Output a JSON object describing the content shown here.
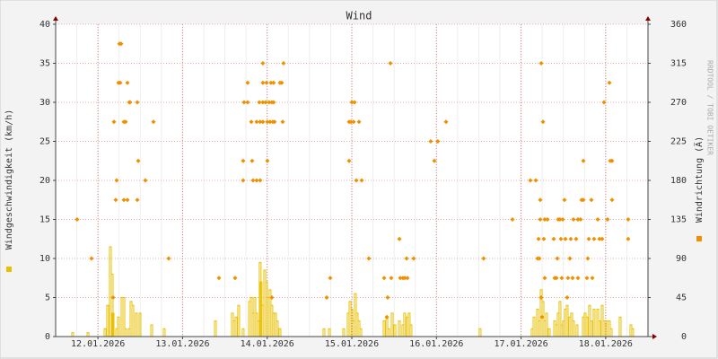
{
  "chart_data": {
    "type": "combo",
    "title": "Wind",
    "watermark": "RRDTOOL / TOBI OETIKER",
    "xlim": [
      0.5,
      7.5
    ],
    "xticks": [
      {
        "value": 1,
        "label": "12.01.2026"
      },
      {
        "value": 2,
        "label": "13.01.2026"
      },
      {
        "value": 3,
        "label": "14.01.2026"
      },
      {
        "value": 4,
        "label": "15.01.2026"
      },
      {
        "value": 5,
        "label": "16.01.2026"
      },
      {
        "value": 6,
        "label": "17.01.2026"
      },
      {
        "value": 7,
        "label": "18.01.2026"
      }
    ],
    "ylim": [
      0,
      40
    ],
    "yticks": [
      0,
      5,
      10,
      15,
      20,
      25,
      30,
      35,
      40
    ],
    "y2lim": [
      0,
      360
    ],
    "y2ticks": [
      0,
      45,
      90,
      135,
      180,
      225,
      270,
      315,
      360
    ],
    "grid": true,
    "series": [
      {
        "name": "Windgeschwindigkeit (km/h)",
        "color": "#e8c000",
        "type": "bar",
        "axis": "y",
        "x": [
          0.701,
          0.882,
          1.083,
          1.115,
          1.147,
          1.168,
          1.179,
          1.221,
          1.242,
          1.285,
          1.306,
          1.327,
          1.37,
          1.391,
          1.412,
          1.454,
          1.497,
          1.635,
          1.783,
          2.388,
          2.589,
          2.61,
          2.632,
          2.663,
          2.716,
          2.791,
          2.812,
          2.833,
          2.854,
          2.875,
          2.897,
          2.917,
          2.928,
          2.949,
          2.971,
          2.992,
          3.013,
          3.034,
          3.055,
          3.076,
          3.098,
          3.119,
          3.151,
          3.671,
          3.735,
          3.904,
          3.957,
          3.979,
          4.0,
          4.021,
          4.042,
          4.063,
          4.085,
          4.106,
          4.382,
          4.414,
          4.435,
          4.477,
          4.509,
          4.562,
          4.604,
          4.625,
          4.657,
          4.678,
          4.699,
          5.516,
          6.131,
          6.153,
          6.195,
          6.216,
          6.238,
          6.259,
          6.28,
          6.301,
          6.333,
          6.397,
          6.418,
          6.439,
          6.46,
          6.481,
          6.502,
          6.524,
          6.545,
          6.577,
          6.598,
          6.619,
          6.661,
          6.736,
          6.757,
          6.778,
          6.81,
          6.831,
          6.863,
          6.906,
          6.927,
          6.959,
          6.98,
          7.001,
          7.022,
          7.044,
          7.065,
          7.171,
          7.298,
          7.319
        ],
        "values": [
          0.5,
          0.5,
          1,
          4,
          11.5,
          8,
          3,
          1,
          2.5,
          5,
          5,
          1,
          1,
          4.5,
          4,
          3,
          3,
          1.5,
          1,
          2,
          3,
          2,
          2.5,
          4,
          1,
          4.5,
          5,
          3,
          5,
          3,
          2,
          9.5,
          7,
          4,
          8.5,
          7,
          5,
          6,
          4,
          3,
          3,
          2,
          1,
          1,
          1,
          1,
          3,
          4.5,
          3.5,
          2,
          5.5,
          3,
          2,
          1,
          2,
          2.5,
          1,
          3,
          1.5,
          2,
          1.5,
          3,
          2.5,
          3,
          1.5,
          1,
          1,
          2.5,
          3.5,
          2,
          6,
          4.5,
          2,
          3,
          1,
          2,
          1.5,
          3,
          4.5,
          1.5,
          2,
          3.5,
          4,
          2.5,
          3,
          2,
          1.5,
          2.5,
          3,
          2.5,
          4,
          2,
          3.5,
          3.5,
          2,
          4,
          2,
          1.5,
          2,
          2,
          1,
          2.5,
          1.5,
          1
        ]
      },
      {
        "name": "Windrichtung (Ä)",
        "color": "#f09000",
        "type": "scatter",
        "axis": "y2",
        "x": [
          0.754,
          0.924,
          1.179,
          1.189,
          1.21,
          1.221,
          1.242,
          1.253,
          1.263,
          1.274,
          1.306,
          1.306,
          1.327,
          1.348,
          1.348,
          1.37,
          1.38,
          1.465,
          1.465,
          1.476,
          1.56,
          1.656,
          1.836,
          2.43,
          2.621,
          2.716,
          2.716,
          2.727,
          2.769,
          2.769,
          2.812,
          2.822,
          2.833,
          2.875,
          2.875,
          2.907,
          2.917,
          2.917,
          2.949,
          2.949,
          2.949,
          2.949,
          2.981,
          2.992,
          3.002,
          3.002,
          3.024,
          3.034,
          3.045,
          3.055,
          3.055,
          3.066,
          3.076,
          3.076,
          3.087,
          3.151,
          3.172,
          3.183,
          3.193,
          3.703,
          3.745,
          3.968,
          3.968,
          3.989,
          4.0,
          4.021,
          4.032,
          4.053,
          4.085,
          4.117,
          4.201,
          4.382,
          4.414,
          4.424,
          4.456,
          4.466,
          4.562,
          4.572,
          4.604,
          4.625,
          4.647,
          4.657,
          4.731,
          4.933,
          4.975,
          5.017,
          5.113,
          5.558,
          5.898,
          6.11,
          6.174,
          6.195,
          6.206,
          6.216,
          6.227,
          6.227,
          6.238,
          6.238,
          6.248,
          6.259,
          6.269,
          6.28,
          6.28,
          6.312,
          6.386,
          6.397,
          6.418,
          6.428,
          6.439,
          6.46,
          6.471,
          6.481,
          6.492,
          6.513,
          6.524,
          6.545,
          6.555,
          6.577,
          6.587,
          6.609,
          6.619,
          6.651,
          6.672,
          6.672,
          6.704,
          6.715,
          6.736,
          6.736,
          6.778,
          6.789,
          6.8,
          6.831,
          6.842,
          6.863,
          6.906,
          6.927,
          6.959,
          6.98,
          7.022,
          7.044,
          7.054,
          7.075,
          7.075,
          7.266,
          7.266
        ],
        "values": [
          135,
          90,
          45,
          247.5,
          157.5,
          180,
          292.5,
          337.5,
          292.5,
          337.5,
          247.5,
          157.5,
          247.5,
          157.5,
          292.5,
          270,
          270,
          270,
          157.5,
          202.5,
          180,
          247.5,
          90,
          67.5,
          67.5,
          202.5,
          180,
          270,
          292.5,
          270,
          247.5,
          202.5,
          180,
          180,
          247.5,
          270,
          180,
          247.5,
          315,
          292.5,
          270,
          247.5,
          270,
          292.5,
          202.5,
          247.5,
          270,
          247.5,
          292.5,
          270,
          45,
          247.5,
          292.5,
          270,
          247.5,
          292.5,
          292.5,
          247.5,
          315,
          45,
          67.5,
          202.5,
          247.5,
          247.5,
          270,
          247.5,
          270,
          180,
          247.5,
          180,
          90,
          67.5,
          22.5,
          45,
          315,
          67.5,
          112.5,
          67.5,
          67.5,
          67.5,
          90,
          67.5,
          90,
          225,
          202.5,
          225,
          247.5,
          90,
          135,
          180,
          180,
          90,
          112.5,
          90,
          135,
          157.5,
          315,
          45,
          22.5,
          247.5,
          112.5,
          135,
          67.5,
          135,
          112.5,
          67.5,
          67.5,
          90,
          135,
          135,
          112.5,
          67.5,
          135,
          157.5,
          112.5,
          45,
          67.5,
          90,
          112.5,
          67.5,
          135,
          112.5,
          67.5,
          135,
          135,
          157.5,
          202.5,
          157.5,
          67.5,
          90,
          112.5,
          157.5,
          67.5,
          112.5,
          135,
          112.5,
          112.5,
          270,
          135,
          292.5,
          202.5,
          157.5,
          202.5,
          135,
          112.5
        ]
      }
    ]
  }
}
